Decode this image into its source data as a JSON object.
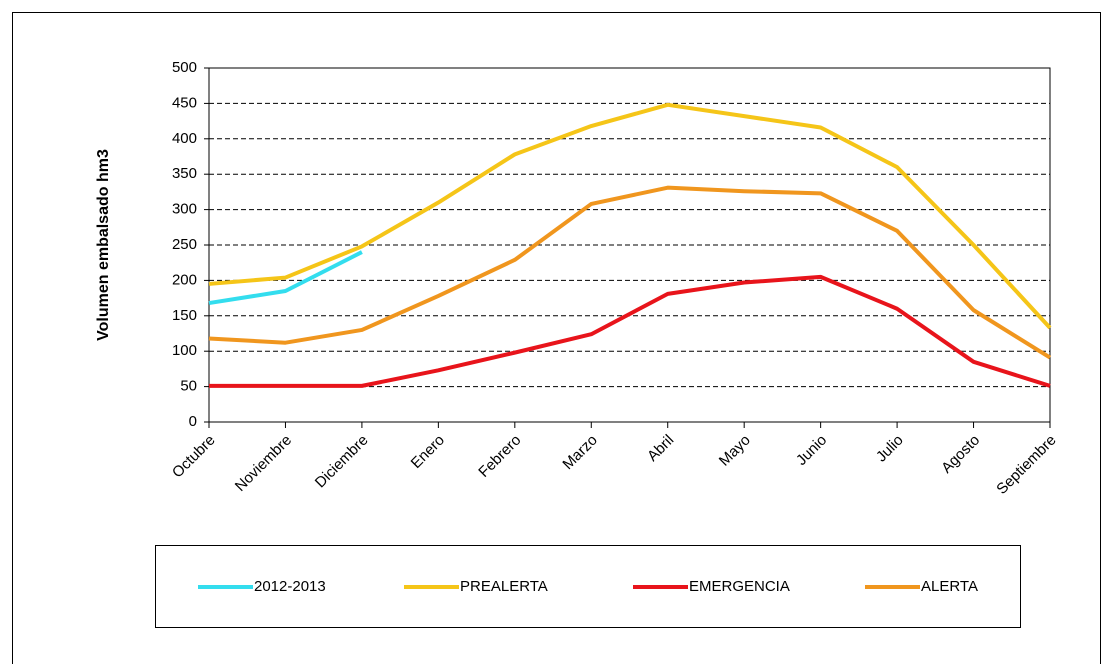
{
  "chart_data": {
    "type": "line",
    "y_label": "Volumen embalsado hm3",
    "categories": [
      "Octubre",
      "Noviembre",
      "Diciembre",
      "Enero",
      "Febrero",
      "Marzo",
      "Abril",
      "Mayo",
      "Junio",
      "Julio",
      "Agosto",
      "Septiembre"
    ],
    "series": [
      {
        "name": "2012-2013",
        "color": "#33ddee",
        "values": [
          168,
          185,
          240,
          null,
          null,
          null,
          null,
          null,
          null,
          null,
          null,
          null
        ]
      },
      {
        "name": "PREALERTA",
        "color": "#f5c518",
        "values": [
          195,
          204,
          248,
          310,
          378,
          418,
          448,
          432,
          416,
          360,
          250,
          133
        ]
      },
      {
        "name": "EMERGENCIA",
        "color": "#e8141b",
        "values": [
          51,
          51,
          51,
          73,
          98,
          124,
          181,
          197,
          205,
          160,
          85,
          51
        ]
      },
      {
        "name": "ALERTA",
        "color": "#f0961e",
        "values": [
          118,
          112,
          130,
          178,
          229,
          308,
          331,
          326,
          323,
          270,
          158,
          91
        ]
      }
    ],
    "ylim": [
      0,
      500
    ],
    "yticks": [
      0,
      50,
      100,
      150,
      200,
      250,
      300,
      350,
      400,
      450,
      500
    ],
    "grid": true,
    "legend": "bottom"
  }
}
